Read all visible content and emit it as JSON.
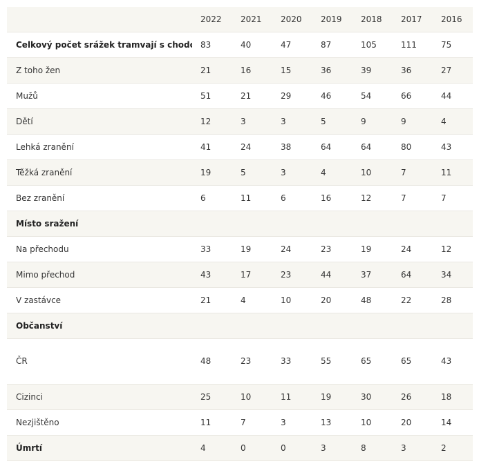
{
  "years": [
    "2022",
    "2021",
    "2020",
    "2019",
    "2018",
    "2017",
    "2016"
  ],
  "rows": [
    {
      "label": "Celkový počet srážek tramvají s chodci",
      "values": [
        "83",
        "40",
        "47",
        "87",
        "105",
        "111",
        "75"
      ]
    },
    {
      "label": "Z toho žen",
      "values": [
        "21",
        "16",
        "15",
        "36",
        "39",
        "36",
        "27"
      ]
    },
    {
      "label": "Mužů",
      "values": [
        "51",
        "21",
        "29",
        "46",
        "54",
        "66",
        "44"
      ]
    },
    {
      "label": "Dětí",
      "values": [
        "12",
        "3",
        "3",
        "5",
        "9",
        "9",
        "4"
      ]
    },
    {
      "label": "Lehká zranění",
      "values": [
        "41",
        "24",
        "38",
        "64",
        "64",
        "80",
        "43"
      ]
    },
    {
      "label": "Těžká zranění",
      "values": [
        "19",
        "5",
        "3",
        "4",
        "10",
        "7",
        "11"
      ]
    },
    {
      "label": "Bez zranění",
      "values": [
        "6",
        "11",
        "6",
        "16",
        "12",
        "7",
        "7"
      ]
    },
    {
      "label": "Místo sražení",
      "values": [
        "",
        "",
        "",
        "",
        "",
        "",
        ""
      ]
    },
    {
      "label": "Na přechodu",
      "values": [
        "33",
        "19",
        "24",
        "23",
        "19",
        "24",
        "12"
      ]
    },
    {
      "label": "Mimo přechod",
      "values": [
        "43",
        "17",
        "23",
        "44",
        "37",
        "64",
        "34"
      ]
    },
    {
      "label": "V zastávce",
      "values": [
        "21",
        "4",
        "10",
        "20",
        "48",
        "22",
        "28"
      ]
    },
    {
      "label": "Občanství",
      "values": [
        "",
        "",
        "",
        "",
        "",
        "",
        ""
      ]
    },
    {
      "label": "ČR",
      "values": [
        "48",
        "23",
        "33",
        "55",
        "65",
        "65",
        "43"
      ]
    },
    {
      "label": "Cizinci",
      "values": [
        "25",
        "10",
        "11",
        "19",
        "30",
        "26",
        "18"
      ]
    },
    {
      "label": "Nezjištěno",
      "values": [
        "11",
        "7",
        "3",
        "13",
        "10",
        "20",
        "14"
      ]
    },
    {
      "label": "Úmrtí",
      "values": [
        "4",
        "0",
        "0",
        "3",
        "8",
        "3",
        "2"
      ]
    }
  ]
}
